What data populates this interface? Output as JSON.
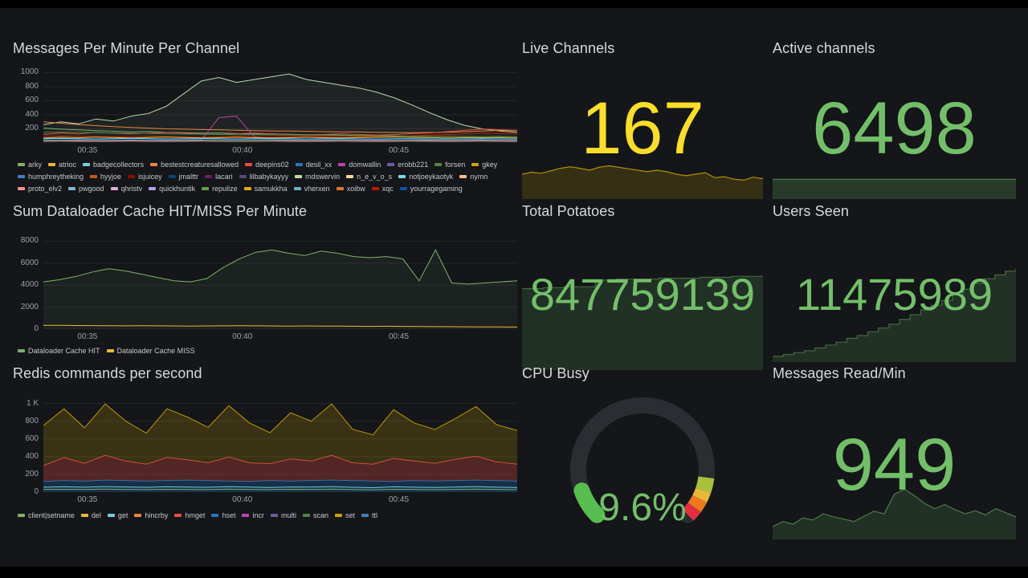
{
  "colors": {
    "yellow": "#FADE2A",
    "green": "#73BF69",
    "gauge_green": "#56BE4F",
    "background": "#141619"
  },
  "panels": {
    "messages": {
      "title": "Messages Per Minute Per Channel",
      "legend": [
        {
          "label": "arky",
          "color": "#7EB26D"
        },
        {
          "label": "atrioc",
          "color": "#EAB839"
        },
        {
          "label": "badgecollectors",
          "color": "#6ED0E0"
        },
        {
          "label": "bestestcreaturesallowed",
          "color": "#EF843C"
        },
        {
          "label": "deepins02",
          "color": "#E24D42"
        },
        {
          "label": "desil_xx",
          "color": "#1F78C1"
        },
        {
          "label": "domwallin",
          "color": "#BA43A9"
        },
        {
          "label": "erobb221",
          "color": "#705DA0"
        },
        {
          "label": "forsen",
          "color": "#508642"
        },
        {
          "label": "gkey",
          "color": "#CCA300"
        },
        {
          "label": "humphreytheking",
          "color": "#447EBC"
        },
        {
          "label": "hyyjoe",
          "color": "#C15C17"
        },
        {
          "label": "isjuicey",
          "color": "#890F02"
        },
        {
          "label": "jmalttr",
          "color": "#0A437C"
        },
        {
          "label": "lacari",
          "color": "#6D1F62"
        },
        {
          "label": "lilbabykayyy",
          "color": "#584477"
        },
        {
          "label": "mdswervin",
          "color": "#B7DBAB"
        },
        {
          "label": "n_e_v_o_s",
          "color": "#F4D598"
        },
        {
          "label": "notjoeykaotyk",
          "color": "#70DBED"
        },
        {
          "label": "nymn",
          "color": "#F9BA8F"
        },
        {
          "label": "proto_elv2",
          "color": "#F29191"
        },
        {
          "label": "pwgood",
          "color": "#82B5D8"
        },
        {
          "label": "qhristv",
          "color": "#E5A8E2"
        },
        {
          "label": "quickhuntik",
          "color": "#AEA2E0"
        },
        {
          "label": "repulize",
          "color": "#629E51"
        },
        {
          "label": "samukkha",
          "color": "#E5AC0E"
        },
        {
          "label": "vherxen",
          "color": "#64B0C8"
        },
        {
          "label": "xoibw",
          "color": "#E0752D"
        },
        {
          "label": "xqc",
          "color": "#BF1B00"
        },
        {
          "label": "yourragegaming",
          "color": "#0A50A1"
        }
      ]
    },
    "dataloader": {
      "title": "Sum Dataloader Cache HIT/MISS Per Minute",
      "legend": [
        {
          "label": "Dataloader Cache HIT",
          "color": "#7EB26D"
        },
        {
          "label": "Dataloader Cache MISS",
          "color": "#EAB839"
        }
      ]
    },
    "redis": {
      "title": "Redis commands per second",
      "legend": [
        {
          "label": "client|setname",
          "color": "#7EB26D"
        },
        {
          "label": "del",
          "color": "#EAB839"
        },
        {
          "label": "get",
          "color": "#6ED0E0"
        },
        {
          "label": "hincrby",
          "color": "#EF843C"
        },
        {
          "label": "hmget",
          "color": "#E24D42"
        },
        {
          "label": "hset",
          "color": "#1F78C1"
        },
        {
          "label": "incr",
          "color": "#BA43A9"
        },
        {
          "label": "multi",
          "color": "#705DA0"
        },
        {
          "label": "scan",
          "color": "#508642"
        },
        {
          "label": "set",
          "color": "#CCA300"
        },
        {
          "label": "ttl",
          "color": "#447EBC"
        }
      ]
    },
    "live_channels": {
      "title": "Live Channels",
      "value": "167"
    },
    "active_channels": {
      "title": "Active channels",
      "value": "6498"
    },
    "total_potatoes": {
      "title": "Total Potatoes",
      "value": "847759139"
    },
    "users_seen": {
      "title": "Users Seen",
      "value": "11475989"
    },
    "cpu_busy": {
      "title": "CPU Busy",
      "value": "9.6%"
    },
    "messages_read": {
      "title": "Messages Read/Min",
      "value": "949"
    }
  },
  "chart_data": {
    "messages_per_minute": {
      "type": "line",
      "ylim": [
        0,
        1050
      ],
      "y_ticks": [
        {
          "label": "1000",
          "value": 1000
        },
        {
          "label": "800",
          "value": 800
        },
        {
          "label": "600",
          "value": 600
        },
        {
          "label": "400",
          "value": 400
        },
        {
          "label": "200",
          "value": 200
        }
      ],
      "x_ticks": [
        "00:35",
        "00:40",
        "00:45"
      ],
      "series": [
        {
          "name": "mdswervin",
          "color": "#B7DBAB",
          "fill": "rgba(183,219,171,0.07)",
          "values": [
            260,
            300,
            270,
            340,
            310,
            380,
            420,
            520,
            700,
            880,
            930,
            860,
            900,
            940,
            980,
            900,
            860,
            820,
            780,
            720,
            640,
            540,
            430,
            330,
            250,
            200,
            170,
            150
          ]
        },
        {
          "name": "bestestcreaturesallowed",
          "color": "#EF843C",
          "values": [
            300,
            280,
            260,
            245,
            230,
            220,
            210,
            200,
            195,
            190,
            185,
            180,
            175,
            170,
            168,
            165,
            160,
            158,
            155,
            150,
            148,
            145,
            148,
            152,
            160,
            170,
            178,
            172
          ]
        },
        {
          "name": "arky",
          "color": "#7EB26D",
          "values": [
            210,
            195,
            185,
            175,
            165,
            158,
            162,
            152,
            145,
            138,
            142,
            132,
            125,
            130,
            122,
            115,
            118,
            112,
            105,
            108,
            102,
            96,
            92,
            95,
            90,
            86,
            90,
            86
          ]
        },
        {
          "name": "deepins02",
          "color": "#E24D42",
          "values": [
            120,
            140,
            128,
            150,
            138,
            128,
            140,
            150,
            138,
            128,
            120,
            130,
            140,
            128,
            120,
            112,
            120,
            130,
            120,
            112,
            120,
            132,
            142,
            160,
            178,
            198,
            188,
            178
          ]
        },
        {
          "name": "xqc",
          "color": "#BF1B00",
          "values": [
            92,
            100,
            95,
            90,
            86,
            90,
            96,
            90,
            85,
            80,
            86,
            92,
            86,
            80,
            85,
            92,
            85,
            80,
            86,
            92,
            96,
            102,
            110,
            120,
            130,
            140,
            134,
            128
          ]
        },
        {
          "name": "domwallin",
          "color": "#BA43A9",
          "values": [
            30,
            32,
            34,
            30,
            32,
            34,
            30,
            34,
            32,
            40,
            360,
            380,
            90,
            42,
            35,
            32,
            34,
            30,
            32,
            34,
            30,
            32,
            34,
            30,
            32,
            34,
            30,
            30
          ]
        },
        {
          "name": "atrioc",
          "color": "#EAB839",
          "values": [
            70,
            80,
            74,
            82,
            76,
            70,
            78,
            82,
            76,
            70,
            74,
            80,
            74,
            70,
            74,
            80,
            74,
            70,
            75,
            80,
            84,
            80,
            75,
            70,
            74,
            78,
            74,
            70
          ]
        },
        {
          "name": "notjoeykaotyk",
          "color": "#70DBED",
          "values": [
            60,
            64,
            60,
            56,
            60,
            64,
            60,
            56,
            58,
            62,
            58,
            55,
            58,
            62,
            58,
            54,
            58,
            60,
            56,
            54,
            58,
            60,
            56,
            54,
            56,
            60,
            56,
            54
          ]
        },
        {
          "name": "forsen",
          "color": "#508642",
          "values": [
            150,
            154,
            150,
            146,
            142,
            138,
            134,
            130,
            127,
            124,
            121,
            118,
            116,
            113,
            111,
            108,
            106,
            104,
            101,
            99,
            97,
            95,
            93,
            91,
            89,
            87,
            86,
            85
          ]
        },
        {
          "name": "desil_xx",
          "color": "#1F78C1",
          "values": [
            46,
            44,
            46,
            44,
            42,
            46,
            44,
            42,
            44,
            46,
            44,
            42,
            44,
            46,
            44,
            42,
            44,
            46,
            44,
            42,
            44,
            46,
            44,
            42,
            44,
            46,
            44,
            42
          ]
        },
        {
          "name": "nymn",
          "color": "#F9BA8F",
          "values": [
            26,
            28,
            26,
            24,
            26,
            28,
            26,
            24,
            26,
            28,
            26,
            24,
            26,
            28,
            26,
            24,
            26,
            28,
            26,
            24,
            26,
            28,
            26,
            24,
            26,
            28,
            26,
            24
          ]
        }
      ]
    },
    "dataloader": {
      "type": "line",
      "ylim": [
        0,
        8400
      ],
      "y_ticks": [
        {
          "label": "8000",
          "value": 8000
        },
        {
          "label": "6000",
          "value": 6000
        },
        {
          "label": "4000",
          "value": 4000
        },
        {
          "label": "2000",
          "value": 2000
        },
        {
          "label": "0",
          "value": 0
        }
      ],
      "x_ticks": [
        "00:35",
        "00:40",
        "00:45"
      ],
      "series": [
        {
          "name": "Dataloader Cache HIT",
          "color": "#7EB26D",
          "fill": "rgba(126,178,109,0.08)",
          "values": [
            4300,
            4500,
            4800,
            5200,
            5500,
            5300,
            5000,
            4700,
            4400,
            4300,
            4600,
            5600,
            6400,
            7000,
            7200,
            6900,
            6700,
            7100,
            6900,
            6600,
            6500,
            6600,
            6400,
            4400,
            7200,
            4200,
            4100,
            4200,
            4300,
            4400
          ]
        },
        {
          "name": "Dataloader Cache MISS",
          "color": "#EAB839",
          "values": [
            350,
            340,
            330,
            320,
            310,
            300,
            310,
            300,
            290,
            280,
            290,
            300,
            310,
            300,
            290,
            280,
            290,
            280,
            270,
            260,
            250,
            260,
            250,
            240,
            230,
            220,
            210,
            200,
            195,
            190
          ]
        }
      ]
    },
    "redis": {
      "type": "stacked-area",
      "ylim": [
        0,
        1050
      ],
      "y_ticks": [
        {
          "label": "1 K",
          "value": 1000
        },
        {
          "label": "800",
          "value": 800
        },
        {
          "label": "600",
          "value": 600
        },
        {
          "label": "400",
          "value": 400
        },
        {
          "label": "200",
          "value": 200
        },
        {
          "label": "0",
          "value": 0
        }
      ],
      "x_ticks": [
        "00:35",
        "00:40",
        "00:45"
      ],
      "stack": [
        {
          "name": "hset",
          "color": "#1F78C1",
          "fill": "rgba(31,120,193,0.28)",
          "values": [
            120,
            130,
            125,
            135,
            130,
            125,
            130,
            135,
            130,
            125,
            120,
            130,
            125,
            130,
            135,
            130,
            125,
            120,
            130,
            125,
            130,
            135,
            130,
            125
          ]
        },
        {
          "name": "hmget",
          "color": "#E24D42",
          "fill": "rgba(226,77,66,0.30)",
          "values": [
            180,
            260,
            200,
            280,
            220,
            190,
            260,
            230,
            200,
            270,
            210,
            190,
            250,
            220,
            280,
            200,
            190,
            260,
            220,
            200,
            240,
            270,
            210,
            190
          ]
        },
        {
          "name": "set",
          "color": "#CCA300",
          "fill": "rgba(204,163,0,0.20)",
          "values": [
            450,
            550,
            400,
            580,
            450,
            350,
            550,
            480,
            400,
            580,
            450,
            350,
            520,
            450,
            580,
            380,
            330,
            550,
            430,
            380,
            460,
            560,
            420,
            380
          ]
        }
      ],
      "series": [
        {
          "name": "client|setname",
          "color": "#7EB26D",
          "values": [
            30,
            32,
            30,
            34,
            30,
            28,
            32,
            30,
            28,
            34,
            30,
            28,
            32,
            30,
            34,
            28,
            26,
            32,
            30,
            28,
            30,
            34,
            30,
            28
          ]
        },
        {
          "name": "get",
          "color": "#6ED0E0",
          "values": [
            55,
            60,
            55,
            62,
            58,
            54,
            60,
            56,
            54,
            62,
            56,
            52,
            58,
            56,
            62,
            54,
            50,
            60,
            55,
            52,
            56,
            62,
            55,
            52
          ]
        }
      ]
    },
    "live_channels_spark": {
      "type": "area",
      "max": 100,
      "color": "rgba(204,163,0,0.85)",
      "fill": "rgba(204,163,0,0.18)",
      "values": [
        50,
        54,
        52,
        57,
        62,
        65,
        62,
        58,
        64,
        67,
        64,
        61,
        58,
        55,
        58,
        55,
        50,
        47,
        50,
        53,
        43,
        45,
        40,
        38,
        44,
        41
      ]
    },
    "active_channels_spark": {
      "type": "area",
      "max": 100,
      "color": "rgba(115,191,105,0.55)",
      "fill": "rgba(115,191,105,0.22)",
      "values": [
        88,
        88,
        88,
        88,
        88,
        88,
        88,
        88,
        88,
        88
      ]
    },
    "total_potatoes_spark": {
      "type": "area",
      "step": true,
      "max": 100,
      "color": "rgba(115,191,105,0.45)",
      "fill": "rgba(115,191,105,0.16)",
      "values": [
        86,
        86,
        87,
        87,
        88,
        88,
        88,
        95,
        95,
        96,
        96,
        96,
        96,
        97,
        97,
        97,
        97,
        98,
        98,
        98,
        99,
        99,
        99,
        99
      ]
    },
    "users_seen_spark": {
      "type": "area",
      "step": true,
      "max": 100,
      "color": "rgba(115,191,105,0.45)",
      "fill": "rgba(115,191,105,0.16)",
      "values": [
        6,
        8,
        10,
        12,
        15,
        18,
        21,
        25,
        28,
        32,
        36,
        40,
        45,
        50,
        55,
        60,
        65,
        71,
        77,
        83,
        88,
        92,
        96,
        99
      ]
    },
    "messages_read_spark": {
      "type": "area",
      "max": 100,
      "color": "rgba(115,191,105,0.55)",
      "fill": "rgba(115,191,105,0.16)",
      "values": [
        25,
        35,
        30,
        42,
        38,
        50,
        44,
        40,
        35,
        45,
        55,
        50,
        88,
        98,
        85,
        70,
        60,
        68,
        58,
        50,
        56,
        48,
        60,
        52,
        44
      ]
    },
    "cpu_gauge": {
      "type": "gauge",
      "value": 9.6,
      "min": 0,
      "max": 100,
      "label": "9.6%",
      "threshold_colors": [
        "#A7C13A",
        "#EAB839",
        "#ED7A1C",
        "#E02F44"
      ]
    }
  }
}
